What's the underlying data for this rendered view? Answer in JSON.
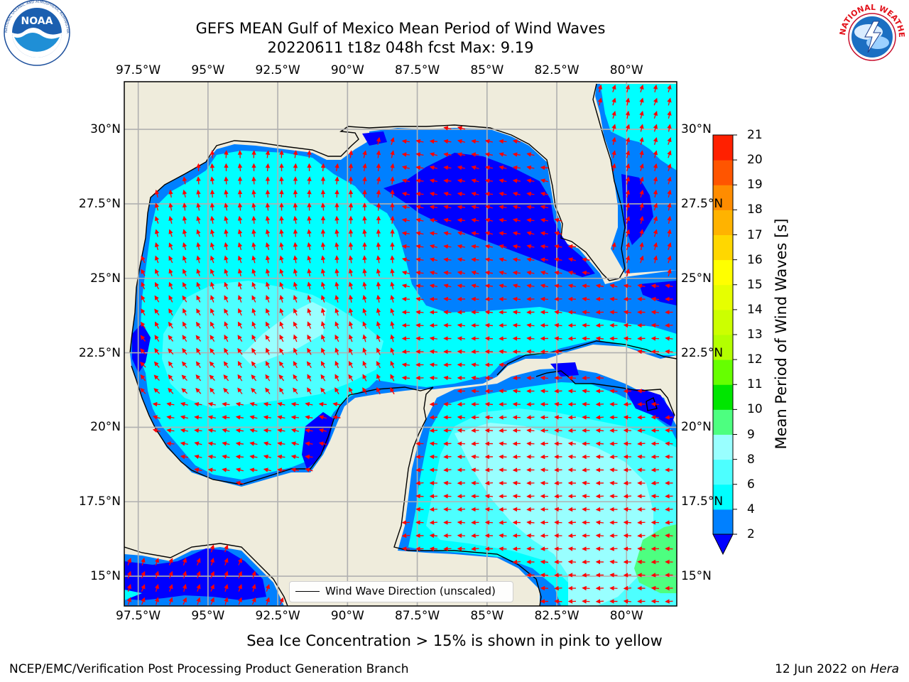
{
  "title": {
    "line1": "GEFS MEAN Gulf of Mexico Mean Period of Wind Waves",
    "line2": "20220611 t18z 048h fcst   Max: 9.19"
  },
  "logos": {
    "left": "noaa-logo",
    "right": "nws-logo",
    "noaa_text": "NOAA",
    "noaa_ring": "NATIONAL OCEANIC AND ATMOSPHERIC ADMINISTRATION · U.S. DEPARTMENT OF COMMERCE",
    "nws_ring": "NATIONAL WEATHER SERVICE"
  },
  "map": {
    "lon_ticks": [
      "97.5°W",
      "95°W",
      "92.5°W",
      "90°W",
      "87.5°W",
      "85°W",
      "82.5°W",
      "80°W"
    ],
    "lon_values": [
      -97.5,
      -95,
      -92.5,
      -90,
      -87.5,
      -85,
      -82.5,
      -80
    ],
    "lat_ticks": [
      "30°N",
      "27.5°N",
      "25°N",
      "22.5°N",
      "20°N",
      "17.5°N",
      "15°N"
    ],
    "lat_values": [
      30,
      27.5,
      25,
      22.5,
      20,
      17.5,
      15
    ],
    "lon_range": [
      -98,
      -78.2
    ],
    "lat_range": [
      14,
      31.6
    ],
    "land_color": "#efecdc",
    "coast_color": "#000000",
    "grid_color": "#b0b0b0",
    "arrow_color": "#ff0000",
    "legend_text": "Wind Wave Direction (unscaled)"
  },
  "colorbar": {
    "title": "Mean Period of Wind Waves [s]",
    "tick_labels": [
      "2",
      "4",
      "6",
      "8",
      "9",
      "10",
      "11",
      "12",
      "13",
      "14",
      "15",
      "16",
      "17",
      "18",
      "19",
      "20",
      "21"
    ],
    "colors": [
      "#0000ff",
      "#0080ff",
      "#00ffff",
      "#4dffff",
      "#99ffff",
      "#4dff80",
      "#00e600",
      "#66ff00",
      "#b3ff00",
      "#ccff00",
      "#e6ff00",
      "#ffff00",
      "#ffd700",
      "#ffb300",
      "#ff8c00",
      "#ff5500",
      "#ff2000",
      "#ff0000"
    ],
    "extend": "min"
  },
  "footnote": "Sea Ice Concentration > 15% is shown in pink to yellow",
  "credit": "NCEP/EMC/Verification Post Processing Product Generation Branch",
  "date": {
    "text": "12 Jun 2022 on ",
    "machine": "Hera"
  }
}
